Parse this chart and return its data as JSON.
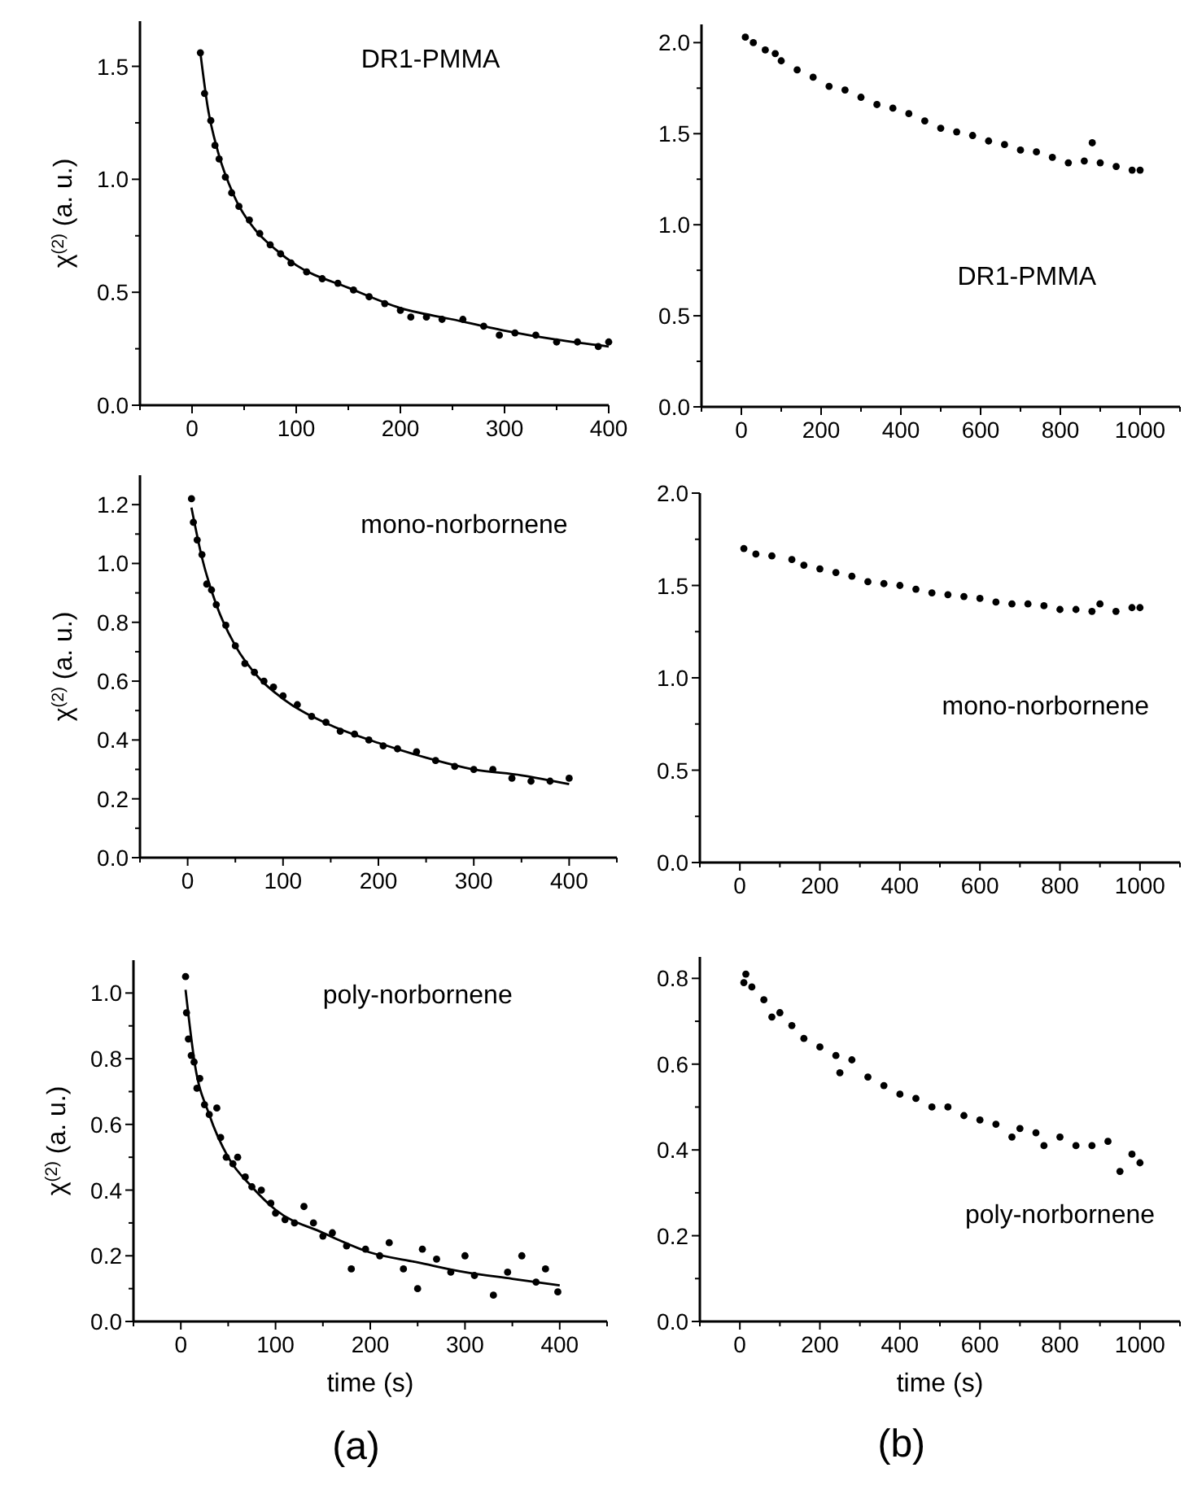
{
  "chart_data": [
    {
      "type": "scatter",
      "ylabel": "χ$^{(2)}$ (a. u.)",
      "annotations": [
        "DR1-PMMA"
      ],
      "xlim": [
        -50,
        400
      ],
      "ylim": [
        0,
        1.7
      ],
      "xticks": [
        {
          "value": -50,
          "label": null
        },
        0,
        {
          "value": 50,
          "label": null
        },
        100,
        {
          "value": 150,
          "label": null
        },
        200,
        {
          "value": 250,
          "label": null
        },
        300,
        {
          "value": 350,
          "label": null
        },
        400
      ],
      "yticks": [
        {
          "value": 0,
          "label": "0.0"
        },
        {
          "value": 0.25,
          "label": null
        },
        {
          "value": 0.5,
          "label": "0.5"
        },
        {
          "value": 0.75,
          "label": null
        },
        {
          "value": 1,
          "label": "1.0"
        },
        {
          "value": 1.25,
          "label": null
        },
        {
          "value": 1.5,
          "label": "1.5"
        }
      ],
      "series": [
        {
          "type": "scatter",
          "marker": "circle",
          "color": "#000000",
          "x": [
            8,
            12,
            18,
            22,
            26,
            32,
            38,
            45,
            55,
            65,
            75,
            85,
            95,
            110,
            125,
            140,
            155,
            170,
            185,
            200,
            210,
            225,
            240,
            260,
            280,
            295,
            310,
            330,
            350,
            370,
            390,
            400
          ],
          "values": [
            1.56,
            1.38,
            1.26,
            1.15,
            1.09,
            1.01,
            0.94,
            0.88,
            0.82,
            0.76,
            0.71,
            0.67,
            0.63,
            0.59,
            0.56,
            0.54,
            0.51,
            0.48,
            0.45,
            0.42,
            0.39,
            0.39,
            0.38,
            0.38,
            0.35,
            0.31,
            0.32,
            0.31,
            0.28,
            0.28,
            0.26,
            0.28
          ]
        },
        {
          "type": "line",
          "color": "#000000",
          "x": [
            8,
            15,
            25,
            40,
            60,
            80,
            100,
            150,
            200,
            250,
            300,
            350,
            400
          ],
          "values": [
            1.56,
            1.32,
            1.12,
            0.93,
            0.78,
            0.69,
            0.62,
            0.52,
            0.43,
            0.38,
            0.33,
            0.29,
            0.26
          ]
        }
      ]
    },
    {
      "type": "scatter",
      "marker": "circle",
      "annotations": [
        "DR1-PMMA"
      ],
      "xlim": [
        -100,
        1100
      ],
      "ylim": [
        0,
        2.1
      ],
      "xticks": [
        {
          "value": -100,
          "label": null
        },
        0,
        {
          "value": 100,
          "label": null
        },
        200,
        {
          "value": 300,
          "label": null
        },
        400,
        {
          "value": 500,
          "label": null
        },
        600,
        {
          "value": 700,
          "label": null
        },
        800,
        {
          "value": 900,
          "label": null
        },
        1000,
        {
          "value": 1100,
          "label": null
        }
      ],
      "yticks": [
        {
          "value": 0,
          "label": "0.0"
        },
        {
          "value": 0.25,
          "label": null
        },
        {
          "value": 0.5,
          "label": "0.5"
        },
        {
          "value": 0.75,
          "label": null
        },
        {
          "value": 1,
          "label": "1.0"
        },
        {
          "value": 1.25,
          "label": null
        },
        {
          "value": 1.5,
          "label": "1.5"
        },
        {
          "value": 1.75,
          "label": null
        },
        {
          "value": 2,
          "label": "2.0"
        }
      ],
      "series": [
        {
          "type": "scatter",
          "color": "#000000",
          "x": [
            10,
            30,
            60,
            85,
            100,
            140,
            180,
            220,
            260,
            300,
            340,
            380,
            420,
            460,
            500,
            540,
            580,
            620,
            660,
            700,
            740,
            780,
            820,
            860,
            880,
            900,
            940,
            980,
            1000
          ],
          "values": [
            2.03,
            2.0,
            1.96,
            1.94,
            1.9,
            1.85,
            1.81,
            1.76,
            1.74,
            1.7,
            1.66,
            1.64,
            1.61,
            1.57,
            1.53,
            1.51,
            1.49,
            1.46,
            1.44,
            1.41,
            1.4,
            1.37,
            1.34,
            1.35,
            1.45,
            1.34,
            1.32,
            1.3,
            1.3
          ]
        }
      ]
    },
    {
      "type": "scatter",
      "ylabel": "χ$^{(2)}$ (a. u.)",
      "annotations": [
        "mono-norbornene"
      ],
      "xlim": [
        -50,
        450
      ],
      "ylim": [
        0,
        1.3
      ],
      "xticks": [
        {
          "value": -50,
          "label": null
        },
        0,
        {
          "value": 50,
          "label": null
        },
        100,
        {
          "value": 150,
          "label": null
        },
        200,
        {
          "value": 250,
          "label": null
        },
        300,
        {
          "value": 350,
          "label": null
        },
        400,
        {
          "value": 450,
          "label": null
        }
      ],
      "yticks": [
        {
          "value": 0,
          "label": "0.0"
        },
        {
          "value": 0.1,
          "label": null
        },
        {
          "value": 0.2,
          "label": "0.2"
        },
        {
          "value": 0.3,
          "label": null
        },
        {
          "value": 0.4,
          "label": "0.4"
        },
        {
          "value": 0.5,
          "label": null
        },
        {
          "value": 0.6,
          "label": "0.6"
        },
        {
          "value": 0.7,
          "label": null
        },
        {
          "value": 0.8,
          "label": "0.8"
        },
        {
          "value": 0.9,
          "label": null
        },
        {
          "value": 1,
          "label": "1.0"
        },
        {
          "value": 1.1,
          "label": null
        },
        {
          "value": 1.2,
          "label": "1.2"
        }
      ],
      "series": [
        {
          "type": "scatter",
          "marker": "circle",
          "color": "#000000",
          "x": [
            4,
            6,
            10,
            15,
            20,
            25,
            30,
            40,
            50,
            60,
            70,
            80,
            90,
            100,
            115,
            130,
            145,
            160,
            175,
            190,
            205,
            220,
            240,
            260,
            280,
            300,
            320,
            340,
            360,
            380,
            400
          ],
          "values": [
            1.22,
            1.14,
            1.08,
            1.03,
            0.93,
            0.91,
            0.86,
            0.79,
            0.72,
            0.66,
            0.63,
            0.6,
            0.58,
            0.55,
            0.52,
            0.48,
            0.46,
            0.43,
            0.42,
            0.4,
            0.38,
            0.37,
            0.36,
            0.33,
            0.31,
            0.3,
            0.3,
            0.27,
            0.26,
            0.26,
            0.27
          ]
        },
        {
          "type": "line",
          "color": "#000000",
          "x": [
            4,
            15,
            30,
            50,
            75,
            100,
            150,
            200,
            250,
            300,
            350,
            400
          ],
          "values": [
            1.19,
            1.02,
            0.86,
            0.72,
            0.61,
            0.54,
            0.45,
            0.39,
            0.34,
            0.3,
            0.28,
            0.25
          ]
        }
      ]
    },
    {
      "type": "scatter",
      "marker": "circle",
      "annotations": [
        "mono-norbornene"
      ],
      "xlim": [
        -100,
        1100
      ],
      "ylim": [
        0,
        2
      ],
      "xticks": [
        {
          "value": -100,
          "label": null
        },
        0,
        {
          "value": 100,
          "label": null
        },
        200,
        {
          "value": 300,
          "label": null
        },
        400,
        {
          "value": 500,
          "label": null
        },
        600,
        {
          "value": 700,
          "label": null
        },
        800,
        {
          "value": 900,
          "label": null
        },
        1000,
        {
          "value": 1100,
          "label": null
        }
      ],
      "yticks": [
        {
          "value": 0,
          "label": "0.0"
        },
        {
          "value": 0.25,
          "label": null
        },
        {
          "value": 0.5,
          "label": "0.5"
        },
        {
          "value": 0.75,
          "label": null
        },
        {
          "value": 1,
          "label": "1.0"
        },
        {
          "value": 1.25,
          "label": null
        },
        {
          "value": 1.5,
          "label": "1.5"
        },
        {
          "value": 1.75,
          "label": null
        },
        {
          "value": 2,
          "label": "2.0"
        }
      ],
      "series": [
        {
          "type": "scatter",
          "color": "#000000",
          "x": [
            10,
            40,
            80,
            130,
            160,
            200,
            240,
            280,
            320,
            360,
            400,
            440,
            480,
            520,
            560,
            600,
            640,
            680,
            720,
            760,
            800,
            840,
            880,
            900,
            940,
            980,
            1000
          ],
          "values": [
            1.7,
            1.67,
            1.66,
            1.64,
            1.61,
            1.59,
            1.57,
            1.55,
            1.52,
            1.51,
            1.5,
            1.48,
            1.46,
            1.45,
            1.44,
            1.43,
            1.41,
            1.4,
            1.4,
            1.39,
            1.37,
            1.37,
            1.36,
            1.4,
            1.36,
            1.38,
            1.38
          ]
        }
      ]
    },
    {
      "type": "scatter",
      "ylabel": "χ$^{(2)}$ (a. u.)",
      "xlabel": "time (s)",
      "annotations": [
        "poly-norbornene",
        "(a)"
      ],
      "xlim": [
        -50,
        450
      ],
      "ylim": [
        0,
        1.1
      ],
      "xticks": [
        {
          "value": -50,
          "label": null
        },
        0,
        {
          "value": 50,
          "label": null
        },
        100,
        {
          "value": 150,
          "label": null
        },
        200,
        {
          "value": 250,
          "label": null
        },
        300,
        {
          "value": 350,
          "label": null
        },
        400,
        {
          "value": 450,
          "label": null
        }
      ],
      "yticks": [
        {
          "value": 0,
          "label": "0.0"
        },
        {
          "value": 0.1,
          "label": null
        },
        {
          "value": 0.2,
          "label": "0.2"
        },
        {
          "value": 0.3,
          "label": null
        },
        {
          "value": 0.4,
          "label": "0.4"
        },
        {
          "value": 0.5,
          "label": null
        },
        {
          "value": 0.6,
          "label": "0.6"
        },
        {
          "value": 0.7,
          "label": null
        },
        {
          "value": 0.8,
          "label": "0.8"
        },
        {
          "value": 0.9,
          "label": null
        },
        {
          "value": 1,
          "label": "1.0"
        }
      ],
      "series": [
        {
          "type": "scatter",
          "marker": "circle",
          "color": "#000000",
          "x": [
            5,
            6,
            8,
            11,
            14,
            17,
            20,
            25,
            30,
            38,
            42,
            48,
            55,
            60,
            68,
            75,
            85,
            95,
            100,
            110,
            120,
            130,
            140,
            150,
            160,
            175,
            180,
            195,
            210,
            220,
            235,
            250,
            255,
            270,
            285,
            300,
            310,
            330,
            345,
            360,
            375,
            385,
            398
          ],
          "values": [
            1.05,
            0.94,
            0.86,
            0.81,
            0.79,
            0.71,
            0.74,
            0.66,
            0.63,
            0.65,
            0.56,
            0.5,
            0.48,
            0.5,
            0.44,
            0.41,
            0.4,
            0.36,
            0.33,
            0.31,
            0.3,
            0.35,
            0.3,
            0.26,
            0.27,
            0.23,
            0.16,
            0.22,
            0.2,
            0.24,
            0.16,
            0.1,
            0.22,
            0.19,
            0.15,
            0.2,
            0.14,
            0.08,
            0.15,
            0.2,
            0.12,
            0.16,
            0.09
          ]
        },
        {
          "type": "line",
          "color": "#000000",
          "x": [
            5,
            15,
            30,
            50,
            75,
            100,
            150,
            200,
            250,
            300,
            350,
            400
          ],
          "values": [
            1.01,
            0.78,
            0.63,
            0.5,
            0.41,
            0.34,
            0.27,
            0.21,
            0.18,
            0.15,
            0.13,
            0.11
          ]
        }
      ]
    },
    {
      "type": "scatter",
      "marker": "circle",
      "xlabel": "time (s)",
      "annotations": [
        "poly-norbornene",
        "(b)"
      ],
      "xlim": [
        -100,
        1100
      ],
      "ylim": [
        0,
        0.85
      ],
      "xticks": [
        {
          "value": -100,
          "label": null
        },
        0,
        {
          "value": 100,
          "label": null
        },
        200,
        {
          "value": 300,
          "label": null
        },
        400,
        {
          "value": 500,
          "label": null
        },
        600,
        {
          "value": 700,
          "label": null
        },
        800,
        {
          "value": 900,
          "label": null
        },
        1000,
        {
          "value": 1100,
          "label": null
        }
      ],
      "yticks": [
        {
          "value": 0,
          "label": "0.0"
        },
        {
          "value": 0.1,
          "label": null
        },
        {
          "value": 0.2,
          "label": "0.2"
        },
        {
          "value": 0.3,
          "label": null
        },
        {
          "value": 0.4,
          "label": "0.4"
        },
        {
          "value": 0.5,
          "label": null
        },
        {
          "value": 0.6,
          "label": "0.6"
        },
        {
          "value": 0.7,
          "label": null
        },
        {
          "value": 0.8,
          "label": "0.8"
        }
      ],
      "series": [
        {
          "type": "scatter",
          "color": "#000000",
          "x": [
            10,
            15,
            30,
            60,
            80,
            100,
            130,
            160,
            200,
            240,
            250,
            280,
            320,
            360,
            400,
            440,
            480,
            520,
            560,
            600,
            640,
            680,
            700,
            740,
            760,
            800,
            840,
            880,
            920,
            950,
            980,
            1000
          ],
          "values": [
            0.79,
            0.81,
            0.78,
            0.75,
            0.71,
            0.72,
            0.69,
            0.66,
            0.64,
            0.62,
            0.58,
            0.61,
            0.57,
            0.55,
            0.53,
            0.52,
            0.5,
            0.5,
            0.48,
            0.47,
            0.46,
            0.43,
            0.45,
            0.44,
            0.41,
            0.43,
            0.41,
            0.41,
            0.42,
            0.35,
            0.39,
            0.37
          ]
        }
      ]
    }
  ]
}
